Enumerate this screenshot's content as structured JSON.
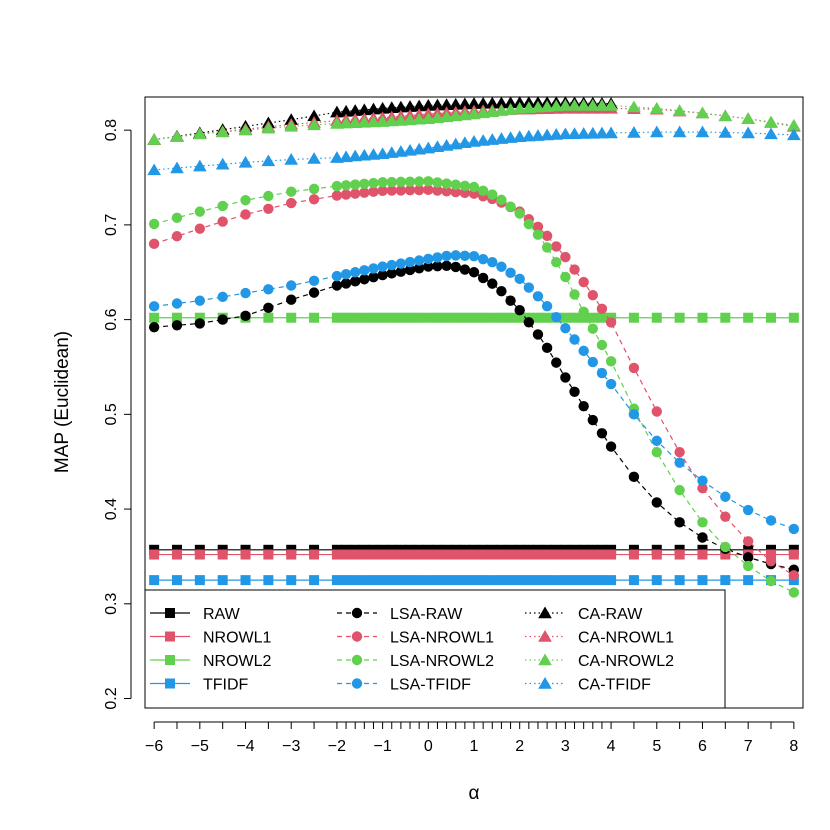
{
  "chart_data": {
    "type": "line",
    "title": "",
    "xlabel": "α",
    "ylabel": "MAP (Euclidean)",
    "xlim": [
      -6.2,
      8.2
    ],
    "ylim": [
      0.19,
      0.835
    ],
    "xticks": [
      -6,
      -5,
      -4,
      -3,
      -2,
      -1,
      0,
      1,
      2,
      3,
      4,
      5,
      6,
      7,
      8
    ],
    "yticks": [
      0.2,
      0.3,
      0.4,
      0.5,
      0.6,
      0.7,
      0.8
    ],
    "ytick_labels": [
      "0.2",
      "0.3",
      "0.4",
      "0.5",
      "0.6",
      "0.7",
      "0.8"
    ],
    "grid": false,
    "legend_position": "bottom-left",
    "colors": {
      "black": "#000000",
      "red": "#DF536B",
      "green": "#61D04F",
      "blue": "#2297E6"
    },
    "series": [
      {
        "name": "RAW",
        "style": "solid",
        "marker": "square",
        "color": "#000000",
        "constant": 0.357
      },
      {
        "name": "NROWL1",
        "style": "solid",
        "marker": "square",
        "color": "#DF536B",
        "constant": 0.352
      },
      {
        "name": "NROWL2",
        "style": "solid",
        "marker": "square",
        "color": "#61D04F",
        "constant": 0.602
      },
      {
        "name": "TFIDF",
        "style": "solid",
        "marker": "square",
        "color": "#2297E6",
        "constant": 0.325
      },
      {
        "name": "LSA-RAW",
        "style": "dashed",
        "marker": "circle",
        "color": "#000000",
        "points": [
          [
            -6,
            0.592
          ],
          [
            -5,
            0.596
          ],
          [
            -4,
            0.604
          ],
          [
            -3,
            0.621
          ],
          [
            -2,
            0.636
          ],
          [
            -1,
            0.647
          ],
          [
            0,
            0.656
          ],
          [
            0.5,
            0.657
          ],
          [
            1,
            0.65
          ],
          [
            1.5,
            0.635
          ],
          [
            2,
            0.61
          ],
          [
            2.5,
            0.578
          ],
          [
            3,
            0.539
          ],
          [
            3.5,
            0.501
          ],
          [
            4,
            0.466
          ],
          [
            4.5,
            0.434
          ],
          [
            5,
            0.407
          ],
          [
            5.5,
            0.386
          ],
          [
            6,
            0.37
          ],
          [
            6.5,
            0.358
          ],
          [
            7,
            0.349
          ],
          [
            7.5,
            0.342
          ],
          [
            8,
            0.336
          ]
        ]
      },
      {
        "name": "LSA-NROWL1",
        "style": "dashed",
        "marker": "circle",
        "color": "#DF536B",
        "points": [
          [
            -6,
            0.68
          ],
          [
            -5,
            0.696
          ],
          [
            -4,
            0.711
          ],
          [
            -3,
            0.723
          ],
          [
            -2,
            0.731
          ],
          [
            -1,
            0.736
          ],
          [
            0,
            0.737
          ],
          [
            1,
            0.733
          ],
          [
            1.5,
            0.726
          ],
          [
            2,
            0.714
          ],
          [
            2.5,
            0.694
          ],
          [
            3,
            0.666
          ],
          [
            3.5,
            0.633
          ],
          [
            4,
            0.597
          ],
          [
            4.5,
            0.549
          ],
          [
            5,
            0.503
          ],
          [
            5.5,
            0.46
          ],
          [
            6,
            0.422
          ],
          [
            6.5,
            0.392
          ],
          [
            7,
            0.366
          ],
          [
            7.5,
            0.345
          ],
          [
            8,
            0.33
          ]
        ]
      },
      {
        "name": "LSA-NROWL2",
        "style": "dashed",
        "marker": "circle",
        "color": "#61D04F",
        "points": [
          [
            -6,
            0.701
          ],
          [
            -5,
            0.714
          ],
          [
            -4,
            0.726
          ],
          [
            -3,
            0.735
          ],
          [
            -2,
            0.741
          ],
          [
            -1,
            0.745
          ],
          [
            0,
            0.746
          ],
          [
            1,
            0.74
          ],
          [
            1.5,
            0.73
          ],
          [
            2,
            0.712
          ],
          [
            2.5,
            0.684
          ],
          [
            3,
            0.645
          ],
          [
            3.5,
            0.599
          ],
          [
            4,
            0.556
          ],
          [
            4.5,
            0.506
          ],
          [
            5,
            0.46
          ],
          [
            5.5,
            0.42
          ],
          [
            6,
            0.386
          ],
          [
            6.5,
            0.36
          ],
          [
            7,
            0.34
          ],
          [
            7.5,
            0.324
          ],
          [
            8,
            0.312
          ]
        ]
      },
      {
        "name": "LSA-TFIDF",
        "style": "dashed",
        "marker": "circle",
        "color": "#2297E6",
        "points": [
          [
            -6,
            0.614
          ],
          [
            -5,
            0.62
          ],
          [
            -4,
            0.628
          ],
          [
            -3,
            0.636
          ],
          [
            -2,
            0.646
          ],
          [
            -1,
            0.656
          ],
          [
            0,
            0.664
          ],
          [
            0.5,
            0.668
          ],
          [
            1,
            0.667
          ],
          [
            1.5,
            0.659
          ],
          [
            2,
            0.643
          ],
          [
            2.5,
            0.62
          ],
          [
            3,
            0.591
          ],
          [
            3.5,
            0.561
          ],
          [
            4,
            0.532
          ],
          [
            4.5,
            0.5
          ],
          [
            5,
            0.472
          ],
          [
            5.5,
            0.449
          ],
          [
            6,
            0.43
          ],
          [
            6.5,
            0.413
          ],
          [
            7,
            0.399
          ],
          [
            7.5,
            0.388
          ],
          [
            8,
            0.379
          ]
        ]
      },
      {
        "name": "CA-RAW",
        "style": "dotted",
        "marker": "triangle",
        "color": "#000000",
        "points": [
          [
            -6,
            0.79
          ],
          [
            -5,
            0.797
          ],
          [
            -4,
            0.804
          ],
          [
            -3,
            0.811
          ],
          [
            -2,
            0.819
          ],
          [
            -1,
            0.823
          ],
          [
            0,
            0.826
          ],
          [
            1,
            0.828
          ],
          [
            2,
            0.829
          ],
          [
            3,
            0.829
          ],
          [
            4,
            0.828
          ]
        ]
      },
      {
        "name": "CA-NROWL1",
        "style": "dotted",
        "marker": "triangle",
        "color": "#DF536B",
        "points": [
          [
            -6,
            0.79
          ],
          [
            -5,
            0.796
          ],
          [
            -4,
            0.801
          ],
          [
            -3,
            0.806
          ],
          [
            -2,
            0.81
          ],
          [
            -1,
            0.813
          ],
          [
            0,
            0.817
          ],
          [
            1,
            0.82
          ],
          [
            2,
            0.822
          ],
          [
            3,
            0.823
          ],
          [
            4,
            0.823
          ],
          [
            5,
            0.822
          ],
          [
            6,
            0.818
          ],
          [
            7,
            0.812
          ],
          [
            8,
            0.804
          ]
        ]
      },
      {
        "name": "CA-NROWL2",
        "style": "dotted",
        "marker": "triangle",
        "color": "#61D04F",
        "points": [
          [
            -6,
            0.79
          ],
          [
            -5,
            0.796
          ],
          [
            -4,
            0.8
          ],
          [
            -3,
            0.804
          ],
          [
            -2,
            0.807
          ],
          [
            -1,
            0.809
          ],
          [
            0,
            0.812
          ],
          [
            1,
            0.817
          ],
          [
            2,
            0.823
          ],
          [
            3,
            0.826
          ],
          [
            4,
            0.826
          ],
          [
            5,
            0.823
          ],
          [
            6,
            0.818
          ],
          [
            7,
            0.812
          ],
          [
            8,
            0.805
          ]
        ]
      },
      {
        "name": "CA-TFIDF",
        "style": "dotted",
        "marker": "triangle",
        "color": "#2297E6",
        "points": [
          [
            -6,
            0.758
          ],
          [
            -5,
            0.762
          ],
          [
            -4,
            0.766
          ],
          [
            -3,
            0.769
          ],
          [
            -2,
            0.771
          ],
          [
            -1,
            0.775
          ],
          [
            0,
            0.781
          ],
          [
            1,
            0.788
          ],
          [
            2,
            0.793
          ],
          [
            3,
            0.796
          ],
          [
            4,
            0.797
          ],
          [
            5,
            0.798
          ],
          [
            6,
            0.798
          ],
          [
            7,
            0.797
          ],
          [
            8,
            0.795
          ]
        ]
      }
    ],
    "legend": {
      "columns": [
        [
          "RAW",
          "NROWL1",
          "NROWL2",
          "TFIDF"
        ],
        [
          "LSA-RAW",
          "LSA-NROWL1",
          "LSA-NROWL2",
          "LSA-TFIDF"
        ],
        [
          "CA-RAW",
          "CA-NROWL1",
          "CA-NROWL2",
          "CA-TFIDF"
        ]
      ]
    }
  }
}
